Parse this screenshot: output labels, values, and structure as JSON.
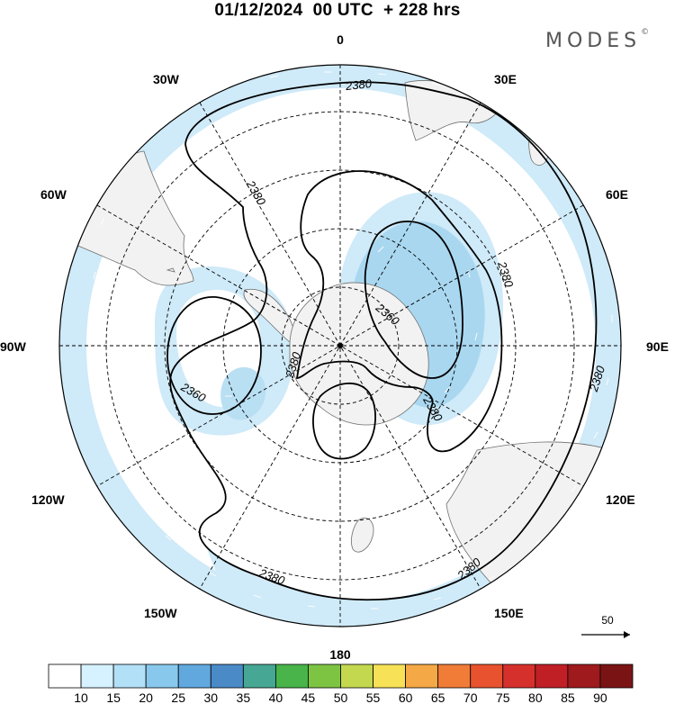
{
  "title": "01/12/2024  00 UTC  + 228 hrs",
  "logo": "MODES",
  "logo_mark": "©",
  "longitude_labels": {
    "top": "0",
    "bottom": "180",
    "left": "90W",
    "right": "90E",
    "upper_left_1": "30W",
    "upper_left_2": "60W",
    "lower_left_1": "120W",
    "lower_left_2": "150W",
    "upper_right_1": "30E",
    "upper_right_2": "60E",
    "lower_right_1": "120E",
    "lower_right_2": "150E"
  },
  "contour_labels": {
    "outer_top": "2380",
    "outer_left": "2380",
    "outer_right_a": "2380",
    "outer_right_b": "2380",
    "outer_lower_right": "2380",
    "outer_bottom": "2380",
    "west_low": "2360",
    "inner_south": "2380",
    "east_low": "2360",
    "east_mid": "2380"
  },
  "reference_vector": "50",
  "colorbar": {
    "labels": [
      "10",
      "15",
      "20",
      "25",
      "30",
      "35",
      "40",
      "45",
      "50",
      "55",
      "60",
      "65",
      "70",
      "75",
      "80",
      "85",
      "90"
    ],
    "colors": [
      "#ffffff",
      "#d6f1ff",
      "#b2e0f7",
      "#88c8ec",
      "#61a8df",
      "#4a8ac7",
      "#46a794",
      "#48b44a",
      "#7dc443",
      "#c4d84f",
      "#f6e157",
      "#f4a846",
      "#f07c37",
      "#e8522e",
      "#d6302c",
      "#c01f26",
      "#9e1a1d",
      "#7a1414"
    ]
  },
  "colors": {
    "land": "#f2f2f2",
    "coast": "#6e6e6e",
    "wind_light": "#cfeaf8",
    "wind_mid": "#a9d7f0",
    "contour": "#000000",
    "grid": "#000000"
  }
}
